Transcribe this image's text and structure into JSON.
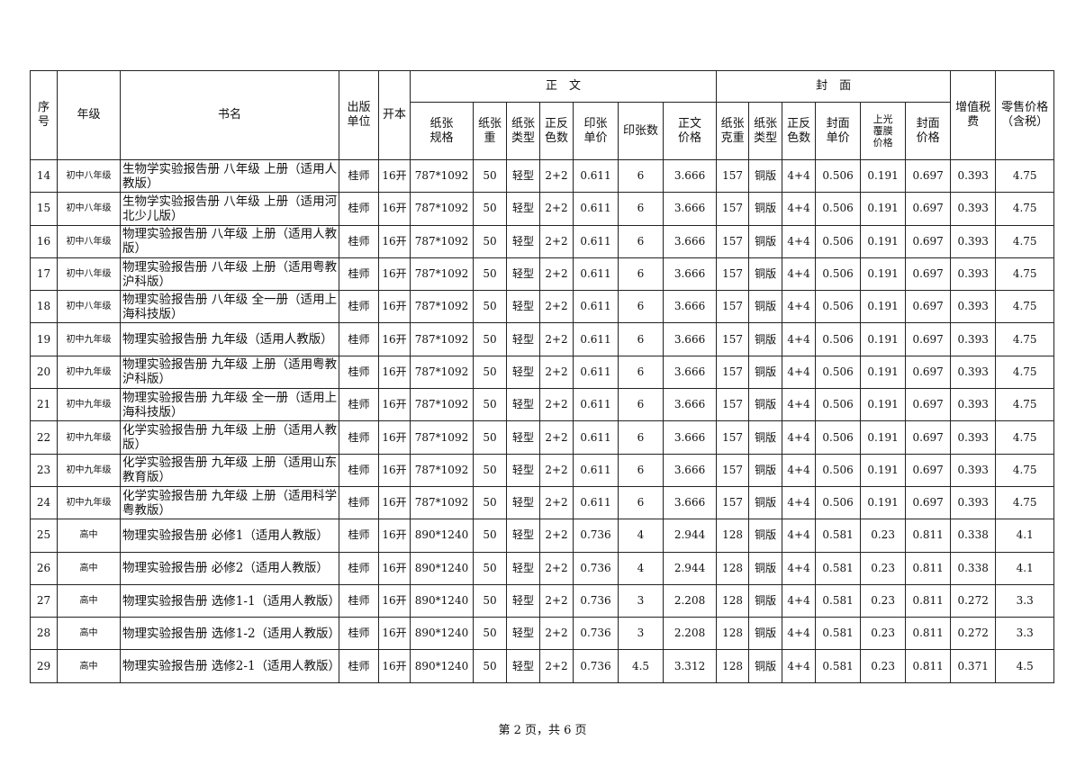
{
  "header": {
    "seq": "序号",
    "grade": "年级",
    "title": "书名",
    "publisher": "出版单位",
    "format": "开本",
    "body_group": "正　文",
    "cover_group": "封　面",
    "paper_spec": "纸张规格",
    "paper_weight": "纸张重",
    "paper_type": "纸张类型",
    "colors": "正反色数",
    "sheet_price": "印张单价",
    "sheet_count": "印张数",
    "body_price": "正文价格",
    "cover_paper_weight": "纸张克重",
    "cover_paper_type": "纸张类型",
    "cover_colors": "正反色数",
    "cover_unit_price": "封面单价",
    "lamination_price": "上光覆膜价格",
    "cover_price": "封面价格",
    "vat": "增值税费",
    "retail_price": "零售价格（含税）"
  },
  "rows": [
    [
      "14",
      "初中八年级",
      "生物学实验报告册 八年级 上册（适用人教版）",
      "桂师",
      "16开",
      "787*1092",
      "50",
      "轻型",
      "2+2",
      "0.611",
      "6",
      "3.666",
      "157",
      "铜版",
      "4+4",
      "0.506",
      "0.191",
      "0.697",
      "0.393",
      "4.75"
    ],
    [
      "15",
      "初中八年级",
      "生物学实验报告册 八年级 上册（适用河北少儿版）",
      "桂师",
      "16开",
      "787*1092",
      "50",
      "轻型",
      "2+2",
      "0.611",
      "6",
      "3.666",
      "157",
      "铜版",
      "4+4",
      "0.506",
      "0.191",
      "0.697",
      "0.393",
      "4.75"
    ],
    [
      "16",
      "初中八年级",
      "物理实验报告册 八年级 上册（适用人教版）",
      "桂师",
      "16开",
      "787*1092",
      "50",
      "轻型",
      "2+2",
      "0.611",
      "6",
      "3.666",
      "157",
      "铜版",
      "4+4",
      "0.506",
      "0.191",
      "0.697",
      "0.393",
      "4.75"
    ],
    [
      "17",
      "初中八年级",
      "物理实验报告册 八年级 上册（适用粤教沪科版）",
      "桂师",
      "16开",
      "787*1092",
      "50",
      "轻型",
      "2+2",
      "0.611",
      "6",
      "3.666",
      "157",
      "铜版",
      "4+4",
      "0.506",
      "0.191",
      "0.697",
      "0.393",
      "4.75"
    ],
    [
      "18",
      "初中八年级",
      "物理实验报告册 八年级 全一册（适用上海科技版）",
      "桂师",
      "16开",
      "787*1092",
      "50",
      "轻型",
      "2+2",
      "0.611",
      "6",
      "3.666",
      "157",
      "铜版",
      "4+4",
      "0.506",
      "0.191",
      "0.697",
      "0.393",
      "4.75"
    ],
    [
      "19",
      "初中九年级",
      "物理实验报告册 九年级（适用人教版）",
      "桂师",
      "16开",
      "787*1092",
      "50",
      "轻型",
      "2+2",
      "0.611",
      "6",
      "3.666",
      "157",
      "铜版",
      "4+4",
      "0.506",
      "0.191",
      "0.697",
      "0.393",
      "4.75"
    ],
    [
      "20",
      "初中九年级",
      "物理实验报告册 九年级 上册（适用粤教沪科版）",
      "桂师",
      "16开",
      "787*1092",
      "50",
      "轻型",
      "2+2",
      "0.611",
      "6",
      "3.666",
      "157",
      "铜版",
      "4+4",
      "0.506",
      "0.191",
      "0.697",
      "0.393",
      "4.75"
    ],
    [
      "21",
      "初中九年级",
      "物理实验报告册 九年级 全一册（适用上海科技版）",
      "桂师",
      "16开",
      "787*1092",
      "50",
      "轻型",
      "2+2",
      "0.611",
      "6",
      "3.666",
      "157",
      "铜版",
      "4+4",
      "0.506",
      "0.191",
      "0.697",
      "0.393",
      "4.75"
    ],
    [
      "22",
      "初中九年级",
      "化学实验报告册 九年级 上册（适用人教版）",
      "桂师",
      "16开",
      "787*1092",
      "50",
      "轻型",
      "2+2",
      "0.611",
      "6",
      "3.666",
      "157",
      "铜版",
      "4+4",
      "0.506",
      "0.191",
      "0.697",
      "0.393",
      "4.75"
    ],
    [
      "23",
      "初中九年级",
      "化学实验报告册 九年级 上册（适用山东教育版）",
      "桂师",
      "16开",
      "787*1092",
      "50",
      "轻型",
      "2+2",
      "0.611",
      "6",
      "3.666",
      "157",
      "铜版",
      "4+4",
      "0.506",
      "0.191",
      "0.697",
      "0.393",
      "4.75"
    ],
    [
      "24",
      "初中九年级",
      "化学实验报告册 九年级 上册（适用科学粤教版）",
      "桂师",
      "16开",
      "787*1092",
      "50",
      "轻型",
      "2+2",
      "0.611",
      "6",
      "3.666",
      "157",
      "铜版",
      "4+4",
      "0.506",
      "0.191",
      "0.697",
      "0.393",
      "4.75"
    ],
    [
      "25",
      "高中",
      "物理实验报告册 必修1（适用人教版）",
      "桂师",
      "16开",
      "890*1240",
      "50",
      "轻型",
      "2+2",
      "0.736",
      "4",
      "2.944",
      "128",
      "铜版",
      "4+4",
      "0.581",
      "0.23",
      "0.811",
      "0.338",
      "4.1"
    ],
    [
      "26",
      "高中",
      "物理实验报告册 必修2（适用人教版）",
      "桂师",
      "16开",
      "890*1240",
      "50",
      "轻型",
      "2+2",
      "0.736",
      "4",
      "2.944",
      "128",
      "铜版",
      "4+4",
      "0.581",
      "0.23",
      "0.811",
      "0.338",
      "4.1"
    ],
    [
      "27",
      "高中",
      "物理实验报告册 选修1-1（适用人教版）",
      "桂师",
      "16开",
      "890*1240",
      "50",
      "轻型",
      "2+2",
      "0.736",
      "3",
      "2.208",
      "128",
      "铜版",
      "4+4",
      "0.581",
      "0.23",
      "0.811",
      "0.272",
      "3.3"
    ],
    [
      "28",
      "高中",
      "物理实验报告册 选修1-2（适用人教版）",
      "桂师",
      "16开",
      "890*1240",
      "50",
      "轻型",
      "2+2",
      "0.736",
      "3",
      "2.208",
      "128",
      "铜版",
      "4+4",
      "0.581",
      "0.23",
      "0.811",
      "0.272",
      "3.3"
    ],
    [
      "29",
      "高中",
      "物理实验报告册 选修2-1（适用人教版）",
      "桂师",
      "16开",
      "890*1240",
      "50",
      "轻型",
      "2+2",
      "0.736",
      "4.5",
      "3.312",
      "128",
      "铜版",
      "4+4",
      "0.581",
      "0.23",
      "0.811",
      "0.371",
      "4.5"
    ]
  ],
  "footer": "第 2 页，共 6 页"
}
